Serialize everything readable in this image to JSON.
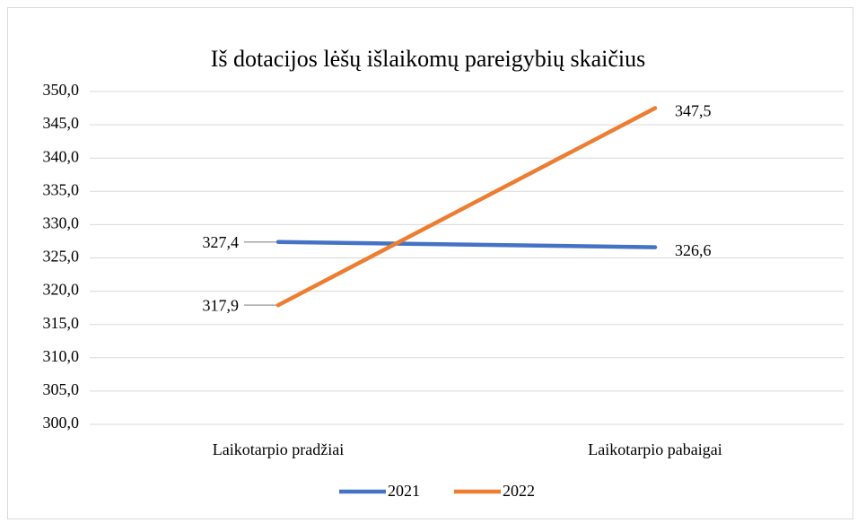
{
  "chart_data": {
    "type": "line",
    "title": "Iš dotacijos lėšų išlaikomų pareigybių skaičius",
    "categories": [
      "Laikotarpio pradžiai",
      "Laikotarpio pabaigai"
    ],
    "series": [
      {
        "name": "2021",
        "color": "#4472c4",
        "values": [
          327.4,
          326.6
        ],
        "value_labels": [
          "327,4",
          "326,6"
        ]
      },
      {
        "name": "2022",
        "color": "#ed7d31",
        "values": [
          317.9,
          347.5
        ],
        "value_labels": [
          "317,9",
          "347,5"
        ]
      }
    ],
    "ylim": [
      300,
      350
    ],
    "yticks": [
      {
        "value": 300,
        "label": "300,0"
      },
      {
        "value": 305,
        "label": "305,0"
      },
      {
        "value": 310,
        "label": "310,0"
      },
      {
        "value": 315,
        "label": "315,0"
      },
      {
        "value": 320,
        "label": "320,0"
      },
      {
        "value": 325,
        "label": "325,0"
      },
      {
        "value": 330,
        "label": "330,0"
      },
      {
        "value": 335,
        "label": "335,0"
      },
      {
        "value": 340,
        "label": "340,0"
      },
      {
        "value": 345,
        "label": "345,0"
      },
      {
        "value": 350,
        "label": "350,0"
      }
    ],
    "grid": true,
    "legend": "bottom"
  }
}
